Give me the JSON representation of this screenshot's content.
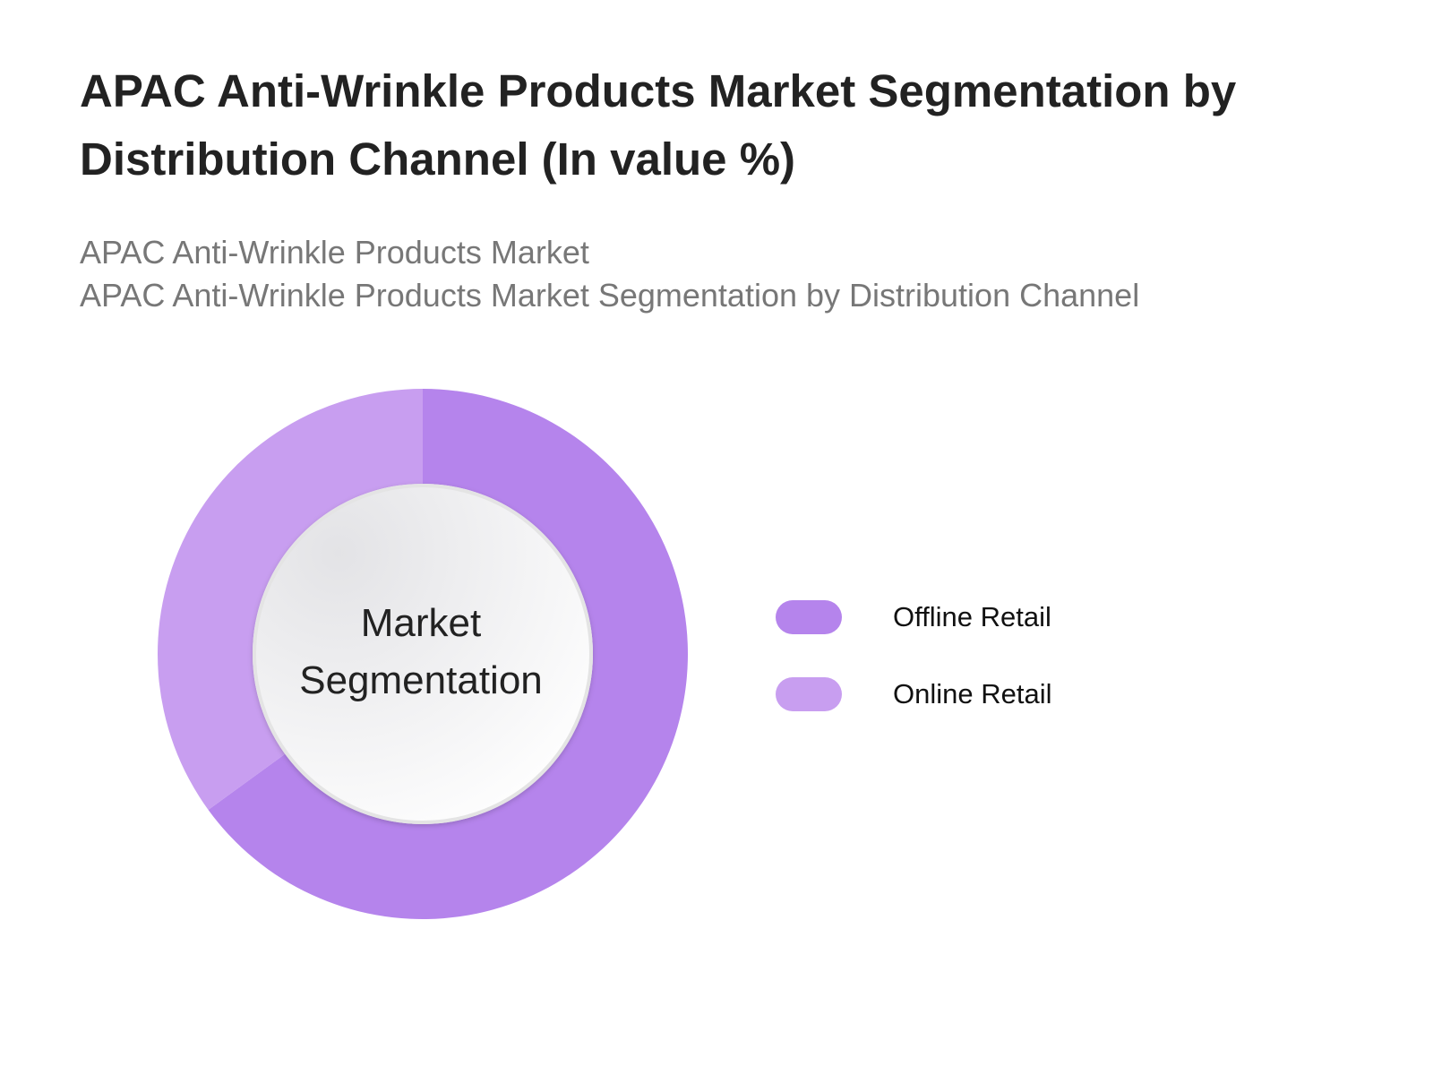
{
  "header": {
    "title": "APAC Anti-Wrinkle Products Market Segmentation by Distribution Channel (In value %)",
    "subtitle_line1": "APAC Anti-Wrinkle Products Market",
    "subtitle_line2": "APAC Anti-Wrinkle Products Market Segmentation by Distribution Channel"
  },
  "chart_data": {
    "type": "pie",
    "variant": "donut",
    "title": "APAC Anti-Wrinkle Products Market Segmentation by Distribution Channel (In value %)",
    "center_label": [
      "Market",
      "Segmentation"
    ],
    "categories": [
      "Offline Retail",
      "Online Retail"
    ],
    "values": [
      65,
      35
    ],
    "colors": [
      "#b584ec",
      "#c89ef0"
    ],
    "start": "top, clockwise",
    "legend_position": "right",
    "data_labels": false
  }
}
